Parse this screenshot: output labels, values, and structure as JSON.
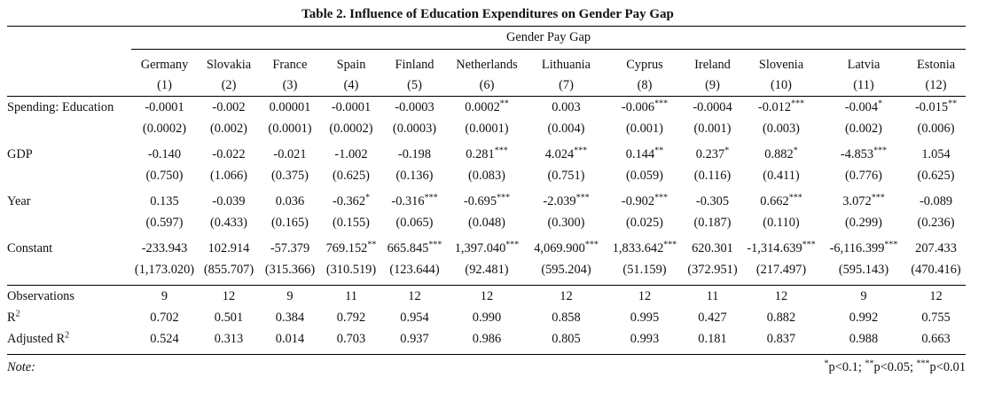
{
  "title": "Table 2. Influence of Education Expenditures on Gender Pay Gap",
  "dependent_variable": "Gender Pay Gap",
  "columns": [
    {
      "country": "Germany",
      "num": "(1)"
    },
    {
      "country": "Slovakia",
      "num": "(2)"
    },
    {
      "country": "France",
      "num": "(3)"
    },
    {
      "country": "Spain",
      "num": "(4)"
    },
    {
      "country": "Finland",
      "num": "(5)"
    },
    {
      "country": "Netherlands",
      "num": "(6)"
    },
    {
      "country": "Lithuania",
      "num": "(7)"
    },
    {
      "country": "Cyprus",
      "num": "(8)"
    },
    {
      "country": "Ireland",
      "num": "(9)"
    },
    {
      "country": "Slovenia",
      "num": "(10)"
    },
    {
      "country": "Latvia",
      "num": "(11)"
    },
    {
      "country": "Estonia",
      "num": "(12)"
    }
  ],
  "coefficients": [
    {
      "label": "Spending: Education",
      "values": [
        {
          "v": "-0.0001",
          "s": ""
        },
        {
          "v": "-0.002",
          "s": ""
        },
        {
          "v": "0.00001",
          "s": ""
        },
        {
          "v": "-0.0001",
          "s": ""
        },
        {
          "v": "-0.0003",
          "s": ""
        },
        {
          "v": "0.0002",
          "s": "**"
        },
        {
          "v": "0.003",
          "s": ""
        },
        {
          "v": "-0.006",
          "s": "***"
        },
        {
          "v": "-0.0004",
          "s": ""
        },
        {
          "v": "-0.012",
          "s": "***"
        },
        {
          "v": "-0.004",
          "s": "*"
        },
        {
          "v": "-0.015",
          "s": "**"
        }
      ],
      "se": [
        "(0.0002)",
        "(0.002)",
        "(0.0001)",
        "(0.0002)",
        "(0.0003)",
        "(0.0001)",
        "(0.004)",
        "(0.001)",
        "(0.001)",
        "(0.003)",
        "(0.002)",
        "(0.006)"
      ]
    },
    {
      "label": "GDP",
      "values": [
        {
          "v": "-0.140",
          "s": ""
        },
        {
          "v": "-0.022",
          "s": ""
        },
        {
          "v": "-0.021",
          "s": ""
        },
        {
          "v": "-1.002",
          "s": ""
        },
        {
          "v": "-0.198",
          "s": ""
        },
        {
          "v": "0.281",
          "s": "***"
        },
        {
          "v": "4.024",
          "s": "***"
        },
        {
          "v": "0.144",
          "s": "**"
        },
        {
          "v": "0.237",
          "s": "*"
        },
        {
          "v": "0.882",
          "s": "*"
        },
        {
          "v": "-4.853",
          "s": "***"
        },
        {
          "v": "1.054",
          "s": ""
        }
      ],
      "se": [
        "(0.750)",
        "(1.066)",
        "(0.375)",
        "(0.625)",
        "(0.136)",
        "(0.083)",
        "(0.751)",
        "(0.059)",
        "(0.116)",
        "(0.411)",
        "(0.776)",
        "(0.625)"
      ]
    },
    {
      "label": "Year",
      "values": [
        {
          "v": "0.135",
          "s": ""
        },
        {
          "v": "-0.039",
          "s": ""
        },
        {
          "v": "0.036",
          "s": ""
        },
        {
          "v": "-0.362",
          "s": "*"
        },
        {
          "v": "-0.316",
          "s": "***"
        },
        {
          "v": "-0.695",
          "s": "***"
        },
        {
          "v": "-2.039",
          "s": "***"
        },
        {
          "v": "-0.902",
          "s": "***"
        },
        {
          "v": "-0.305",
          "s": ""
        },
        {
          "v": "0.662",
          "s": "***"
        },
        {
          "v": "3.072",
          "s": "***"
        },
        {
          "v": "-0.089",
          "s": ""
        }
      ],
      "se": [
        "(0.597)",
        "(0.433)",
        "(0.165)",
        "(0.155)",
        "(0.065)",
        "(0.048)",
        "(0.300)",
        "(0.025)",
        "(0.187)",
        "(0.110)",
        "(0.299)",
        "(0.236)"
      ]
    },
    {
      "label": "Constant",
      "values": [
        {
          "v": "-233.943",
          "s": ""
        },
        {
          "v": "102.914",
          "s": ""
        },
        {
          "v": "-57.379",
          "s": ""
        },
        {
          "v": "769.152",
          "s": "**"
        },
        {
          "v": "665.845",
          "s": "***"
        },
        {
          "v": "1,397.040",
          "s": "***"
        },
        {
          "v": "4,069.900",
          "s": "***"
        },
        {
          "v": "1,833.642",
          "s": "***"
        },
        {
          "v": "620.301",
          "s": ""
        },
        {
          "v": "-1,314.639",
          "s": "***"
        },
        {
          "v": "-6,116.399",
          "s": "***"
        },
        {
          "v": "207.433",
          "s": ""
        }
      ],
      "se": [
        "(1,173.020)",
        "(855.707)",
        "(315.366)",
        "(310.519)",
        "(123.644)",
        "(92.481)",
        "(595.204)",
        "(51.159)",
        "(372.951)",
        "(217.497)",
        "(595.143)",
        "(470.416)"
      ]
    }
  ],
  "stats": [
    {
      "label": "Observations",
      "sup": "",
      "values": [
        "9",
        "12",
        "9",
        "11",
        "12",
        "12",
        "12",
        "12",
        "11",
        "12",
        "9",
        "12"
      ]
    },
    {
      "label": "R",
      "sup": "2",
      "values": [
        "0.702",
        "0.501",
        "0.384",
        "0.792",
        "0.954",
        "0.990",
        "0.858",
        "0.995",
        "0.427",
        "0.882",
        "0.992",
        "0.755"
      ]
    },
    {
      "label": "Adjusted R",
      "sup": "2",
      "values": [
        "0.524",
        "0.313",
        "0.014",
        "0.703",
        "0.937",
        "0.986",
        "0.805",
        "0.993",
        "0.181",
        "0.837",
        "0.988",
        "0.663"
      ]
    }
  ],
  "note": {
    "label": "Note:",
    "levels": [
      {
        "stars": "*",
        "text": "p<0.1; "
      },
      {
        "stars": "**",
        "text": "p<0.05; "
      },
      {
        "stars": "***",
        "text": "p<0.01"
      }
    ]
  }
}
